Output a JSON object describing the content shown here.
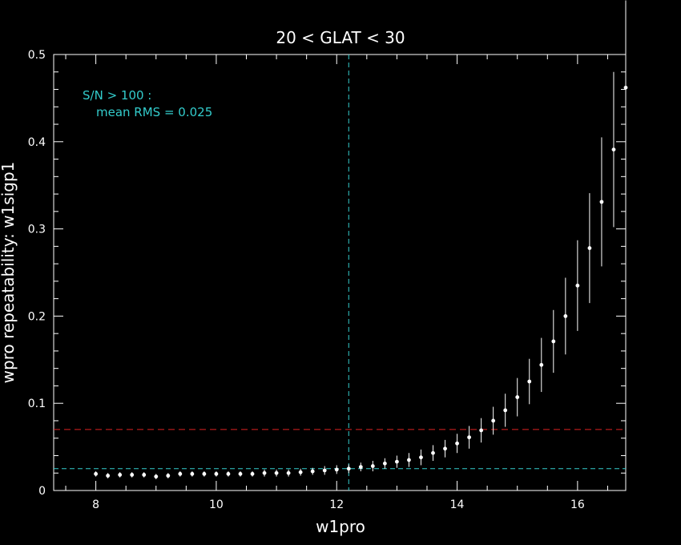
{
  "chart_data": {
    "type": "scatter",
    "title": "20 < GLAT < 30",
    "xlabel": "w1pro",
    "ylabel": "wpro repeatability: w1sigp1",
    "xlim": [
      7.3,
      16.8
    ],
    "ylim": [
      0,
      0.5
    ],
    "xticks_major": [
      8,
      10,
      12,
      14,
      16
    ],
    "yticks_major": [
      0,
      0.1,
      0.2,
      0.3,
      0.4,
      0.5
    ],
    "ytick_labels": [
      "0",
      "0.1",
      "0.2",
      "0.3",
      "0.4",
      "0.5"
    ],
    "grid": false,
    "annotation": {
      "line1": "S/N > 100 :",
      "line2": "mean RMS =  0.025"
    },
    "reference_lines": {
      "vertical_x": 12.2,
      "horizontal_cyan_y": 0.025,
      "horizontal_red_y": 0.07
    },
    "series": [
      {
        "x": [
          8.0,
          8.2,
          8.4,
          8.6,
          8.8,
          9.0,
          9.2,
          9.4,
          9.6,
          9.8,
          10.0,
          10.2,
          10.4,
          10.6,
          10.8,
          11.0,
          11.2,
          11.4,
          11.6,
          11.8,
          12.0,
          12.2,
          12.4,
          12.6,
          12.8,
          13.0,
          13.2,
          13.4,
          13.6,
          13.8,
          14.0,
          14.2,
          14.4,
          14.6,
          14.8,
          15.0,
          15.2,
          15.4,
          15.6,
          15.8,
          16.0,
          16.2,
          16.4,
          16.6,
          16.8
        ],
        "y": [
          0.019,
          0.017,
          0.018,
          0.018,
          0.018,
          0.016,
          0.017,
          0.019,
          0.019,
          0.019,
          0.019,
          0.019,
          0.019,
          0.019,
          0.02,
          0.02,
          0.02,
          0.021,
          0.022,
          0.023,
          0.024,
          0.025,
          0.027,
          0.028,
          0.031,
          0.033,
          0.035,
          0.038,
          0.043,
          0.048,
          0.054,
          0.061,
          0.069,
          0.08,
          0.092,
          0.107,
          0.125,
          0.144,
          0.171,
          0.2,
          0.235,
          0.278,
          0.331,
          0.391,
          0.462
        ],
        "err": [
          0.003,
          0.003,
          0.003,
          0.003,
          0.003,
          0.003,
          0.003,
          0.003,
          0.003,
          0.003,
          0.003,
          0.003,
          0.003,
          0.003,
          0.004,
          0.004,
          0.004,
          0.004,
          0.004,
          0.005,
          0.005,
          0.005,
          0.005,
          0.006,
          0.006,
          0.007,
          0.008,
          0.009,
          0.009,
          0.01,
          0.011,
          0.013,
          0.014,
          0.016,
          0.019,
          0.022,
          0.026,
          0.031,
          0.036,
          0.044,
          0.052,
          0.063,
          0.074,
          0.089,
          0.1
        ]
      }
    ]
  },
  "colors": {
    "background": "#000000",
    "axes": "#ffffff",
    "points": "#ffffff",
    "cyan": "#33cccc",
    "red": "#dd2222"
  }
}
